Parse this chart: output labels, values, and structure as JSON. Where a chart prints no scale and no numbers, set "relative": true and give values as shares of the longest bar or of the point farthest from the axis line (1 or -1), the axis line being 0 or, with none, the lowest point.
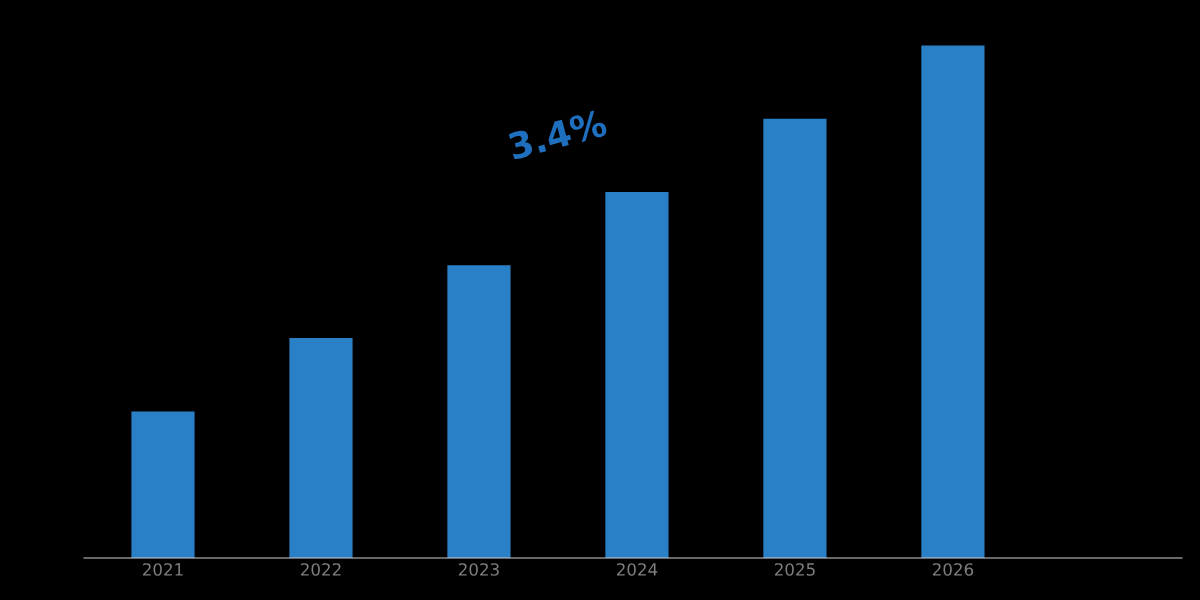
{
  "chart_data": {
    "type": "bar",
    "relative": true,
    "categories": [
      "2021",
      "2022",
      "2023",
      "2024",
      "2025",
      "2026"
    ],
    "values": [
      0.286,
      0.429,
      0.571,
      0.714,
      0.857,
      1.0
    ],
    "color": "#2a80c6",
    "annotations": [
      "3.4%"
    ],
    "grid": false,
    "legend": false
  }
}
